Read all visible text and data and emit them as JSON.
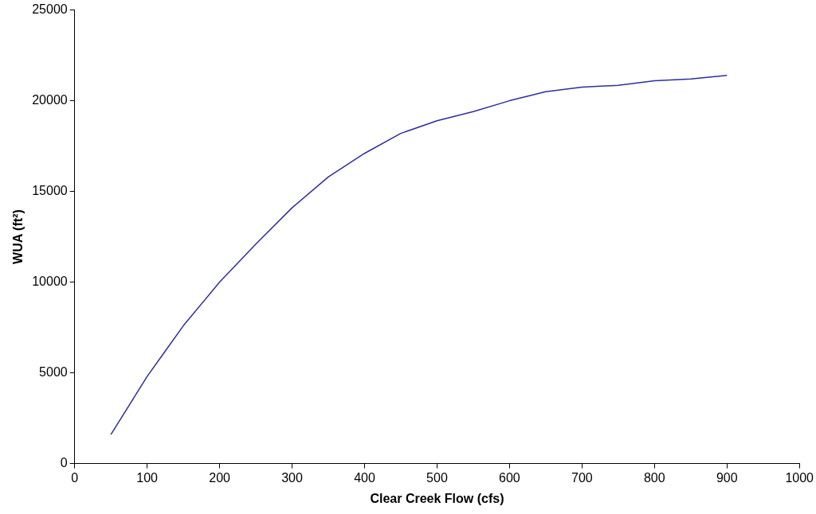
{
  "chart_data": {
    "type": "line",
    "xlabel": "Clear Creek Flow (cfs)",
    "ylabel": "WUA (ft²)",
    "x": [
      50,
      100,
      125,
      150,
      200,
      250,
      300,
      350,
      400,
      450,
      500,
      550,
      600,
      650,
      700,
      750,
      800,
      850,
      900
    ],
    "series": [
      {
        "color": "#2e2e9e",
        "values": [
          1600,
          4800,
          6200,
          7600,
          10000,
          12100,
          14100,
          15800,
          17100,
          18200,
          18900,
          19400,
          20000,
          20500,
          20750,
          20850,
          21100,
          21200,
          21400
        ]
      }
    ],
    "xlim": [
      0,
      1000
    ],
    "xticks": [
      0,
      100,
      200,
      300,
      400,
      500,
      600,
      700,
      800,
      900,
      1000
    ],
    "ylim": [
      0,
      25000
    ],
    "yticks": [
      0,
      5000,
      10000,
      15000,
      20000,
      25000
    ],
    "grid": false,
    "legend": false,
    "marker": "none",
    "line_style": "solid"
  }
}
